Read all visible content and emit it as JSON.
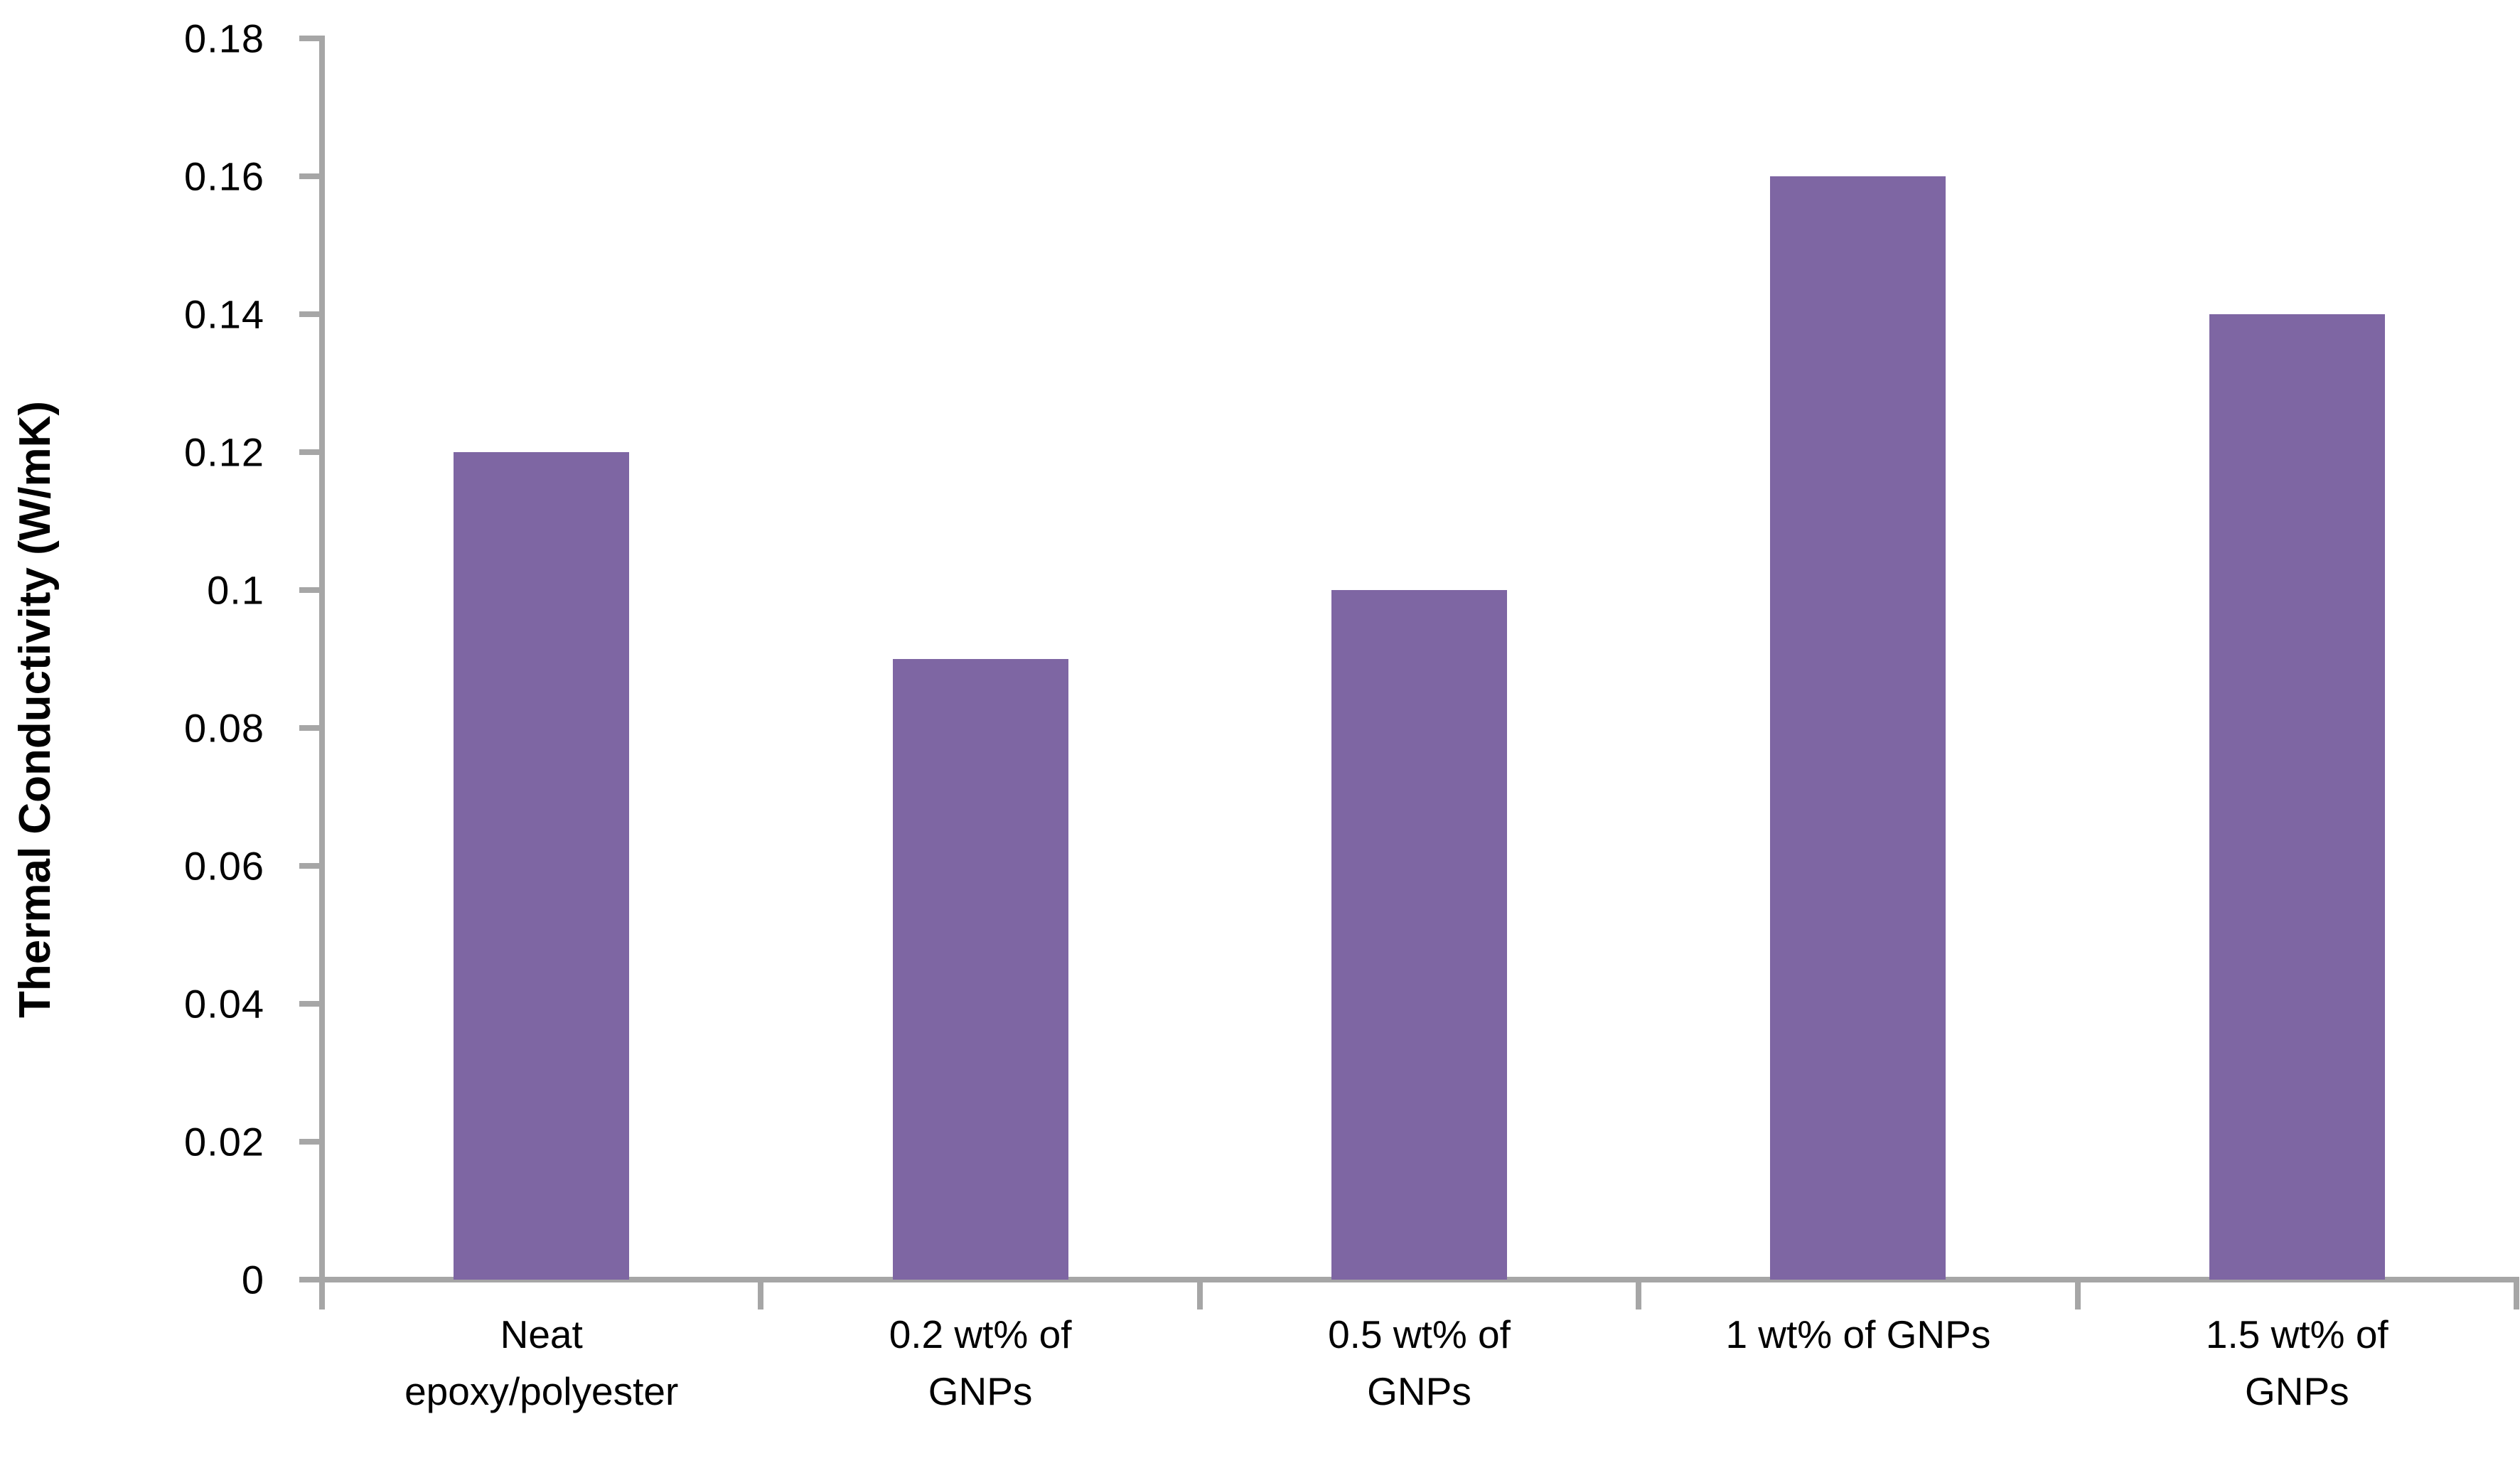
{
  "chart_data": {
    "type": "bar",
    "title": "",
    "ylabel": "Thermal Conductivity (W/mK)",
    "xlabel": "",
    "categories": [
      "Neat epoxy/polyester",
      "0.2 wt% of GNPs",
      "0.5 wt% of GNPs",
      "1 wt% of GNPs",
      "1.5 wt% of GNPs"
    ],
    "category_label_lines": [
      "Neat\nepoxy/polyester",
      "0.2 wt% of\nGNPs",
      "0.5 wt% of\nGNPs",
      "1 wt% of GNPs",
      "1.5 wt% of\nGNPs"
    ],
    "values": [
      0.12,
      0.09,
      0.1,
      0.16,
      0.14
    ],
    "ylim": [
      0,
      0.18
    ],
    "ytick_labels": [
      "0",
      "0.02",
      "0.04",
      "0.06",
      "0.08",
      "0.1",
      "0.12",
      "0.14",
      "0.16",
      "0.18"
    ],
    "ytick_values": [
      0,
      0.02,
      0.04,
      0.06,
      0.08,
      0.1,
      0.12,
      0.14,
      0.16,
      0.18
    ],
    "grid": false,
    "legend_position": "none",
    "colors": {
      "bar_fill": "#7E66A3",
      "axis_line": "#A6A6A6",
      "text": "#000000",
      "background": "#FFFFFF"
    }
  }
}
